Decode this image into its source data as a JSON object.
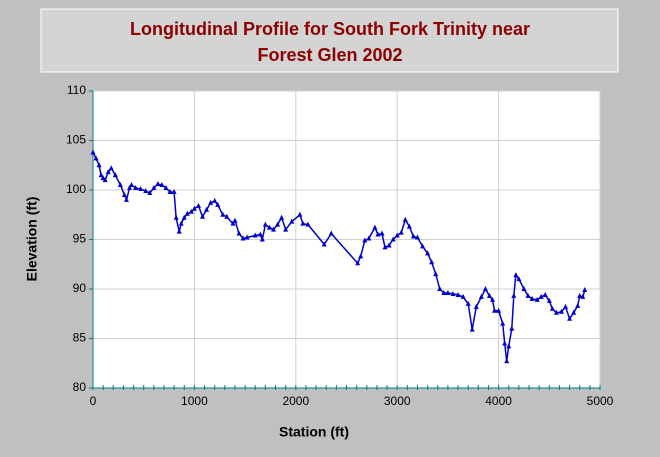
{
  "chart_data": {
    "type": "line",
    "title": "Longitudinal Profile for South Fork Trinity near Forest Glen 2002",
    "xlabel": "Station (ft)",
    "ylabel": "Elevation (ft)",
    "color": "#0000cc",
    "grid": true,
    "xlim": [
      0,
      5000
    ],
    "xticks": [
      0,
      1000,
      2000,
      3000,
      4000,
      5000
    ],
    "ylim": [
      80,
      110
    ],
    "yticks": [
      80,
      85,
      90,
      95,
      100,
      105,
      110
    ],
    "x": [
      0,
      30,
      60,
      80,
      100,
      120,
      150,
      180,
      220,
      270,
      310,
      330,
      360,
      380,
      420,
      470,
      520,
      560,
      600,
      640,
      680,
      720,
      760,
      800,
      820,
      850,
      870,
      900,
      930,
      970,
      1000,
      1040,
      1080,
      1120,
      1160,
      1200,
      1230,
      1280,
      1320,
      1380,
      1400,
      1440,
      1480,
      1520,
      1600,
      1650,
      1670,
      1700,
      1740,
      1780,
      1820,
      1860,
      1900,
      1960,
      2040,
      2070,
      2120,
      2280,
      2350,
      2610,
      2640,
      2680,
      2720,
      2780,
      2810,
      2850,
      2880,
      2920,
      2960,
      3000,
      3040,
      3080,
      3120,
      3160,
      3200,
      3250,
      3300,
      3340,
      3380,
      3420,
      3460,
      3500,
      3550,
      3600,
      3650,
      3700,
      3740,
      3780,
      3830,
      3870,
      3910,
      3940,
      3960,
      4000,
      4040,
      4060,
      4080,
      4100,
      4130,
      4150,
      4170,
      4200,
      4250,
      4290,
      4330,
      4380,
      4420,
      4460,
      4500,
      4530,
      4570,
      4620,
      4660,
      4700,
      4740,
      4780,
      4800,
      4830,
      4850
    ],
    "values": [
      103.8,
      103.2,
      102.5,
      101.5,
      101.2,
      101.0,
      101.8,
      102.2,
      101.5,
      100.5,
      99.5,
      99.0,
      100.2,
      100.5,
      100.2,
      100.1,
      99.9,
      99.7,
      100.2,
      100.6,
      100.5,
      100.2,
      99.8,
      99.8,
      97.2,
      95.8,
      96.6,
      97.2,
      97.6,
      97.8,
      98.1,
      98.4,
      97.3,
      98.0,
      98.7,
      98.9,
      98.5,
      97.5,
      97.3,
      96.6,
      96.9,
      95.6,
      95.1,
      95.2,
      95.4,
      95.5,
      95.0,
      96.5,
      96.2,
      96.0,
      96.5,
      97.2,
      96.0,
      96.8,
      97.5,
      96.6,
      96.5,
      94.5,
      95.6,
      92.6,
      93.3,
      94.9,
      95.1,
      96.2,
      95.5,
      95.6,
      94.2,
      94.4,
      95.0,
      95.4,
      95.7,
      97.0,
      96.3,
      95.3,
      95.2,
      94.3,
      93.6,
      92.7,
      91.5,
      90.0,
      89.6,
      89.6,
      89.5,
      89.4,
      89.2,
      88.5,
      85.9,
      88.2,
      89.2,
      90.0,
      89.3,
      88.9,
      87.8,
      87.8,
      86.5,
      84.5,
      82.7,
      84.2,
      86.0,
      89.3,
      91.4,
      91.0,
      90.0,
      89.3,
      89.0,
      88.9,
      89.2,
      89.4,
      88.8,
      88.0,
      87.6,
      87.7,
      88.2,
      87.0,
      87.6,
      88.3,
      89.3,
      89.2,
      89.9
    ]
  }
}
